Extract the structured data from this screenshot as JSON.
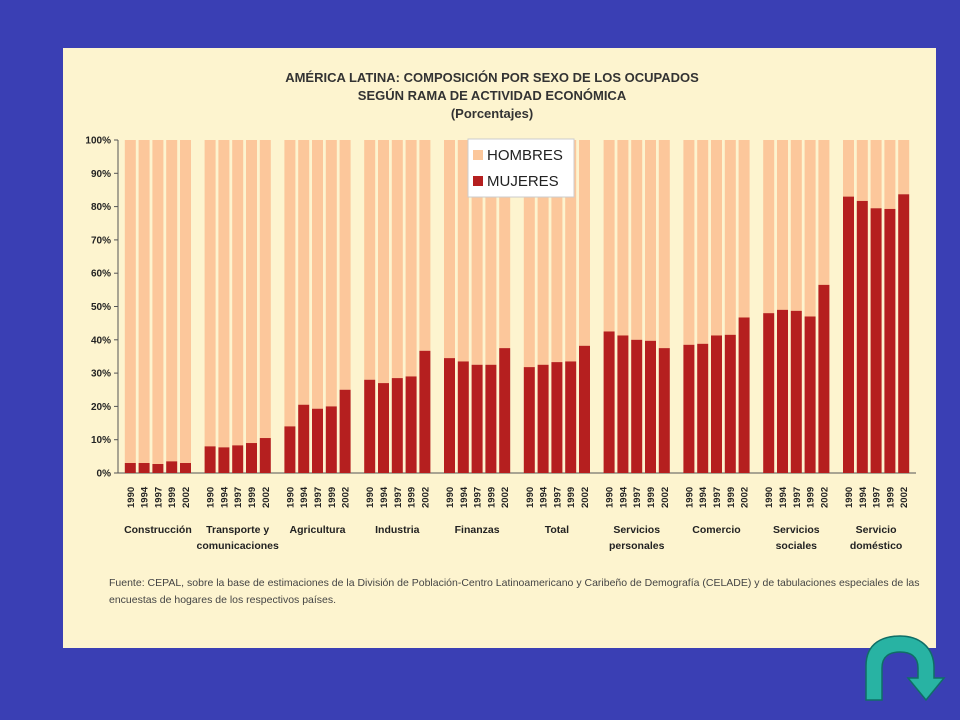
{
  "chart_data": {
    "type": "bar",
    "stacked": true,
    "title_lines": [
      "AMÉRICA LATINA: COMPOSICIÓN POR SEXO DE LOS OCUPADOS",
      "SEGÚN  RAMA DE ACTIVIDAD ECONÓMICA",
      "(Porcentajes)"
    ],
    "years": [
      "1990",
      "1994",
      "1997",
      "1999",
      "2002"
    ],
    "groups": [
      {
        "label_lines": [
          "Construcción"
        ],
        "mujeres": [
          3,
          3,
          2.7,
          3.5,
          3
        ]
      },
      {
        "label_lines": [
          "Transporte y",
          "comunicaciones"
        ],
        "mujeres": [
          8,
          7.7,
          8.3,
          9,
          10.5
        ]
      },
      {
        "label_lines": [
          "Agricultura"
        ],
        "mujeres": [
          14,
          20.5,
          19.3,
          20,
          25
        ]
      },
      {
        "label_lines": [
          "Industria"
        ],
        "mujeres": [
          28,
          27,
          28.5,
          29,
          36.7
        ]
      },
      {
        "label_lines": [
          "Finanzas"
        ],
        "mujeres": [
          34.5,
          33.5,
          32.5,
          32.5,
          37.5
        ]
      },
      {
        "label_lines": [
          "Total"
        ],
        "mujeres": [
          31.8,
          32.5,
          33.3,
          33.5,
          38.2
        ]
      },
      {
        "label_lines": [
          "Servicios",
          "personales"
        ],
        "mujeres": [
          42.5,
          41.3,
          40,
          39.7,
          37.5
        ]
      },
      {
        "label_lines": [
          "Comercio"
        ],
        "mujeres": [
          38.5,
          38.8,
          41.3,
          41.5,
          46.7
        ]
      },
      {
        "label_lines": [
          "Servicios",
          "sociales"
        ],
        "mujeres": [
          48,
          49,
          48.7,
          47,
          56.5
        ]
      },
      {
        "label_lines": [
          "Servicio",
          "doméstico"
        ],
        "mujeres": [
          83,
          81.7,
          79.5,
          79.3,
          83.7
        ]
      }
    ],
    "series": [
      {
        "name": "HOMBRES",
        "color": "#fcc79b"
      },
      {
        "name": "MUJERES",
        "color": "#b51f1f"
      }
    ],
    "y_ticks": [
      "0%",
      "10%",
      "20%",
      "30%",
      "40%",
      "50%",
      "60%",
      "70%",
      "80%",
      "90%",
      "100%"
    ],
    "ylim": [
      0,
      100
    ],
    "legend_position": "top-center",
    "source_lines": [
      "Fuente: CEPAL, sobre la base de estimaciones de la División de Población-Centro Latinoamericano y Caribeño de Demografía (CELADE) y de tabulaciones especiales de las",
      "encuestas de hogares de los respectivos países."
    ]
  },
  "nav": {
    "next_icon": "curved-arrow-icon",
    "color": "#28b3a3"
  }
}
